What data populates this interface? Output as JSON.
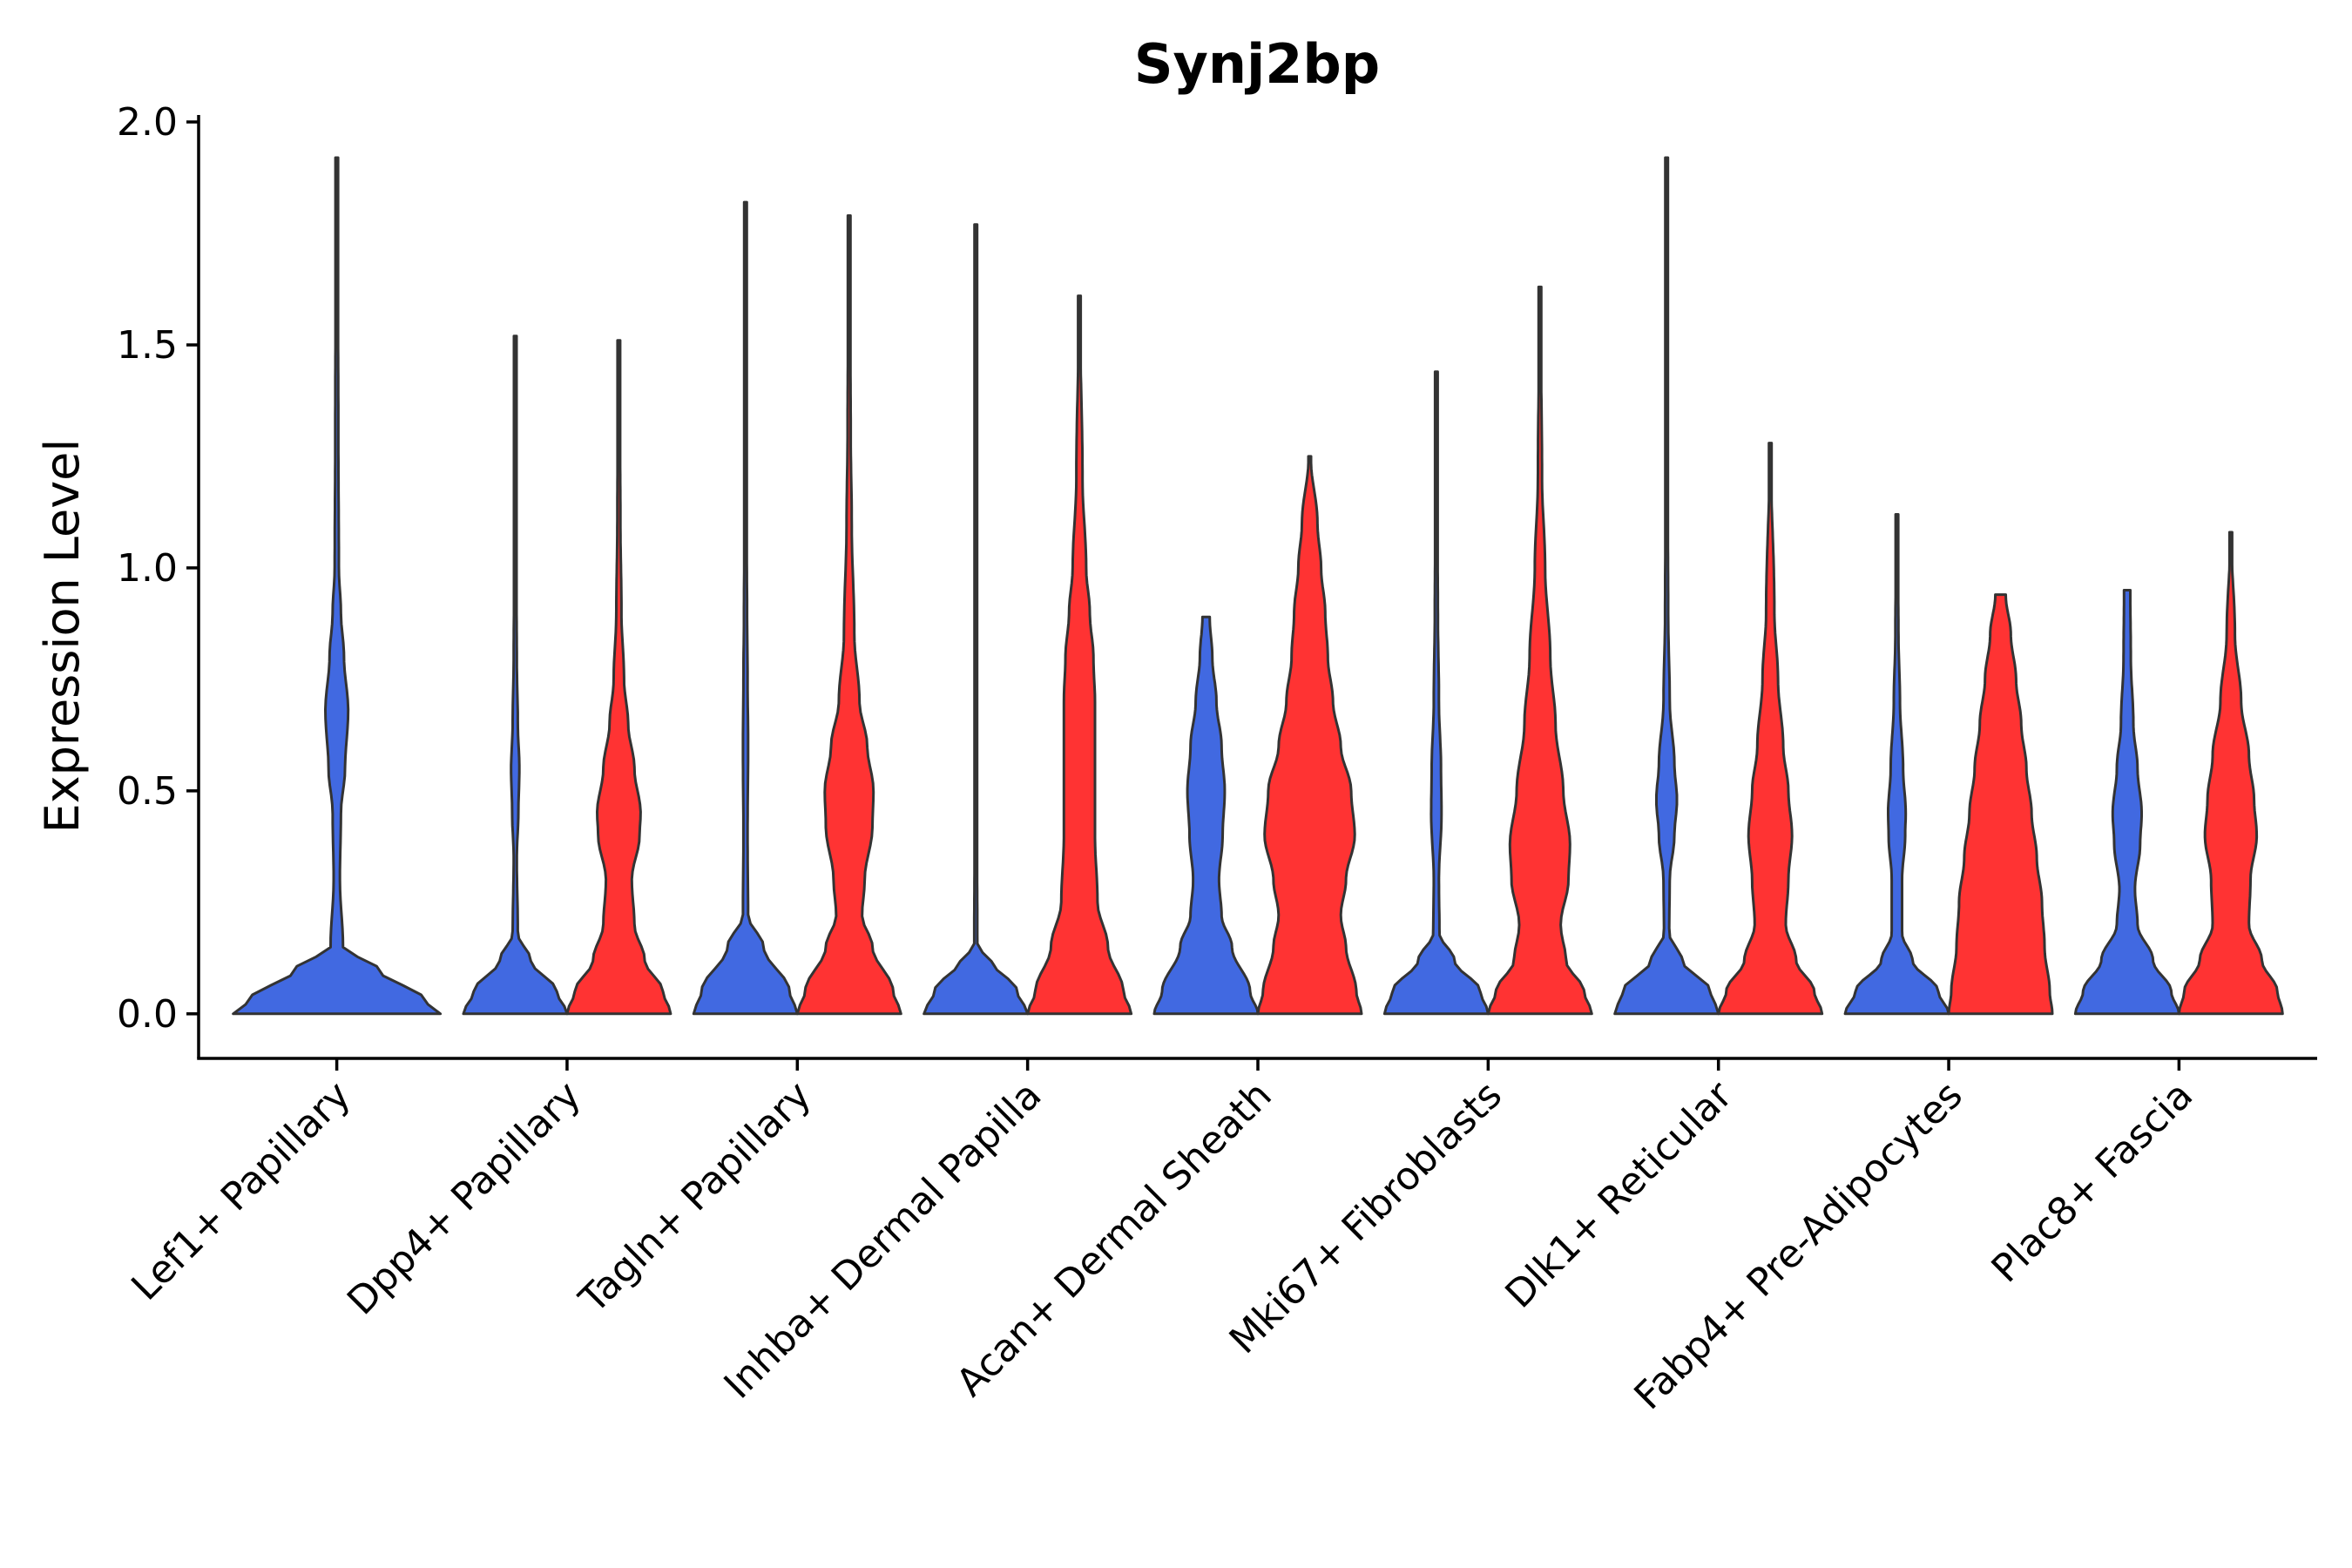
{
  "chart_data": {
    "type": "violin",
    "title": "Synj2bp",
    "xlabel": "",
    "ylabel": "Expression Level",
    "ylim": [
      -0.1,
      2.0
    ],
    "yticks": [
      "0.0",
      "0.5",
      "1.0",
      "1.5",
      "2.0"
    ],
    "grid": false,
    "legend": "none",
    "split_colors": [
      "#4169E1",
      "#FF3333"
    ],
    "categories": [
      "Lef1+ Papillary",
      "Dpp4+ Papillary",
      "Tagln+ Papillary",
      "Inhba+ Dermal Papilla",
      "Acan+ Dermal Sheath",
      "Mki67+ Fibroblasts",
      "Dlk1+ Reticular",
      "Fabp4+ Pre-Adipocytes",
      "Plac8+ Fascia"
    ],
    "series": [
      {
        "name": "blue",
        "color": "#4169E1",
        "violins": [
          {
            "max": 1.92,
            "profile": [
              [
                0,
                1.0
              ],
              [
                0.03,
                0.85
              ],
              [
                0.1,
                0.4
              ],
              [
                0.15,
                0.06
              ],
              [
                0.3,
                0.03
              ],
              [
                0.45,
                0.04
              ],
              [
                0.55,
                0.08
              ],
              [
                0.68,
                0.11
              ],
              [
                0.8,
                0.07
              ],
              [
                0.9,
                0.04
              ],
              [
                1.0,
                0.02
              ],
              [
                1.3,
                0.015
              ],
              [
                1.92,
                0.005
              ]
            ]
          },
          {
            "max": 1.52,
            "profile": [
              [
                0,
                1.0
              ],
              [
                0.05,
                0.8
              ],
              [
                0.12,
                0.3
              ],
              [
                0.18,
                0.05
              ],
              [
                0.35,
                0.03
              ],
              [
                0.45,
                0.06
              ],
              [
                0.55,
                0.08
              ],
              [
                0.65,
                0.05
              ],
              [
                0.8,
                0.03
              ],
              [
                1.0,
                0.02
              ],
              [
                1.52,
                0.005
              ]
            ]
          },
          {
            "max": 1.82,
            "profile": [
              [
                0,
                1.0
              ],
              [
                0.05,
                0.85
              ],
              [
                0.15,
                0.35
              ],
              [
                0.22,
                0.05
              ],
              [
                0.4,
                0.04
              ],
              [
                0.6,
                0.05
              ],
              [
                0.75,
                0.04
              ],
              [
                0.9,
                0.03
              ],
              [
                1.1,
                0.02
              ],
              [
                1.82,
                0.005
              ]
            ]
          },
          {
            "max": 1.77,
            "profile": [
              [
                0,
                1.0
              ],
              [
                0.05,
                0.8
              ],
              [
                0.12,
                0.3
              ],
              [
                0.15,
                0.03
              ],
              [
                0.5,
                0.02
              ],
              [
                0.8,
                0.02
              ],
              [
                1.0,
                0.015
              ],
              [
                1.77,
                0.005
              ]
            ]
          },
          {
            "max": 0.89,
            "profile": [
              [
                0,
                1.0
              ],
              [
                0.05,
                0.85
              ],
              [
                0.15,
                0.5
              ],
              [
                0.22,
                0.3
              ],
              [
                0.3,
                0.25
              ],
              [
                0.4,
                0.32
              ],
              [
                0.5,
                0.36
              ],
              [
                0.6,
                0.3
              ],
              [
                0.7,
                0.2
              ],
              [
                0.8,
                0.12
              ],
              [
                0.89,
                0.07
              ]
            ]
          },
          {
            "max": 1.44,
            "profile": [
              [
                0,
                1.0
              ],
              [
                0.05,
                0.85
              ],
              [
                0.12,
                0.35
              ],
              [
                0.18,
                0.06
              ],
              [
                0.3,
                0.05
              ],
              [
                0.45,
                0.1
              ],
              [
                0.55,
                0.09
              ],
              [
                0.7,
                0.05
              ],
              [
                0.9,
                0.03
              ],
              [
                1.1,
                0.02
              ],
              [
                1.44,
                0.005
              ]
            ]
          },
          {
            "max": 1.92,
            "profile": [
              [
                0,
                1.0
              ],
              [
                0.05,
                0.85
              ],
              [
                0.12,
                0.3
              ],
              [
                0.18,
                0.05
              ],
              [
                0.3,
                0.06
              ],
              [
                0.4,
                0.15
              ],
              [
                0.48,
                0.2
              ],
              [
                0.56,
                0.15
              ],
              [
                0.7,
                0.06
              ],
              [
                0.9,
                0.03
              ],
              [
                1.2,
                0.02
              ],
              [
                1.92,
                0.005
              ]
            ]
          },
          {
            "max": 1.12,
            "profile": [
              [
                0,
                1.0
              ],
              [
                0.05,
                0.8
              ],
              [
                0.12,
                0.3
              ],
              [
                0.18,
                0.1
              ],
              [
                0.3,
                0.1
              ],
              [
                0.4,
                0.16
              ],
              [
                0.45,
                0.17
              ],
              [
                0.55,
                0.12
              ],
              [
                0.7,
                0.06
              ],
              [
                0.85,
                0.03
              ],
              [
                1.12,
                0.005
              ]
            ]
          },
          {
            "max": 0.95,
            "profile": [
              [
                0,
                1.0
              ],
              [
                0.05,
                0.85
              ],
              [
                0.12,
                0.5
              ],
              [
                0.2,
                0.2
              ],
              [
                0.28,
                0.15
              ],
              [
                0.38,
                0.25
              ],
              [
                0.45,
                0.28
              ],
              [
                0.55,
                0.2
              ],
              [
                0.65,
                0.12
              ],
              [
                0.8,
                0.07
              ],
              [
                0.95,
                0.06
              ]
            ]
          }
        ]
      },
      {
        "name": "red",
        "color": "#FF3333",
        "violins": [
          null,
          {
            "max": 1.51,
            "profile": [
              [
                0,
                1.0
              ],
              [
                0.05,
                0.85
              ],
              [
                0.12,
                0.5
              ],
              [
                0.2,
                0.3
              ],
              [
                0.3,
                0.25
              ],
              [
                0.4,
                0.4
              ],
              [
                0.45,
                0.42
              ],
              [
                0.55,
                0.3
              ],
              [
                0.65,
                0.18
              ],
              [
                0.75,
                0.1
              ],
              [
                0.9,
                0.05
              ],
              [
                1.1,
                0.03
              ],
              [
                1.51,
                0.005
              ]
            ]
          },
          {
            "max": 1.79,
            "profile": [
              [
                0,
                1.0
              ],
              [
                0.05,
                0.85
              ],
              [
                0.15,
                0.45
              ],
              [
                0.22,
                0.25
              ],
              [
                0.3,
                0.3
              ],
              [
                0.42,
                0.45
              ],
              [
                0.5,
                0.47
              ],
              [
                0.6,
                0.35
              ],
              [
                0.7,
                0.2
              ],
              [
                0.85,
                0.1
              ],
              [
                1.1,
                0.05
              ],
              [
                1.3,
                0.03
              ],
              [
                1.79,
                0.005
              ]
            ]
          },
          {
            "max": 1.61,
            "profile": [
              [
                0,
                1.0
              ],
              [
                0.05,
                0.85
              ],
              [
                0.15,
                0.55
              ],
              [
                0.25,
                0.35
              ],
              [
                0.4,
                0.3
              ],
              [
                0.55,
                0.3
              ],
              [
                0.7,
                0.3
              ],
              [
                0.8,
                0.27
              ],
              [
                0.9,
                0.2
              ],
              [
                1.0,
                0.13
              ],
              [
                1.2,
                0.06
              ],
              [
                1.61,
                0.005
              ]
            ]
          },
          {
            "max": 1.25,
            "profile": [
              [
                0,
                1.0
              ],
              [
                0.05,
                0.9
              ],
              [
                0.15,
                0.7
              ],
              [
                0.22,
                0.6
              ],
              [
                0.3,
                0.7
              ],
              [
                0.4,
                0.87
              ],
              [
                0.5,
                0.8
              ],
              [
                0.6,
                0.6
              ],
              [
                0.7,
                0.45
              ],
              [
                0.8,
                0.35
              ],
              [
                0.9,
                0.3
              ],
              [
                1.0,
                0.22
              ],
              [
                1.1,
                0.15
              ],
              [
                1.25,
                0.02
              ]
            ]
          },
          {
            "max": 1.63,
            "profile": [
              [
                0,
                1.0
              ],
              [
                0.05,
                0.85
              ],
              [
                0.12,
                0.5
              ],
              [
                0.2,
                0.4
              ],
              [
                0.3,
                0.55
              ],
              [
                0.38,
                0.58
              ],
              [
                0.5,
                0.45
              ],
              [
                0.65,
                0.3
              ],
              [
                0.8,
                0.2
              ],
              [
                1.0,
                0.1
              ],
              [
                1.2,
                0.04
              ],
              [
                1.63,
                0.005
              ]
            ]
          },
          {
            "max": 1.28,
            "profile": [
              [
                0,
                1.0
              ],
              [
                0.05,
                0.85
              ],
              [
                0.12,
                0.5
              ],
              [
                0.2,
                0.3
              ],
              [
                0.3,
                0.35
              ],
              [
                0.4,
                0.42
              ],
              [
                0.5,
                0.35
              ],
              [
                0.6,
                0.25
              ],
              [
                0.75,
                0.15
              ],
              [
                0.9,
                0.08
              ],
              [
                1.28,
                0.005
              ]
            ]
          },
          {
            "max": 0.94,
            "profile": [
              [
                0,
                1.0
              ],
              [
                0.05,
                0.95
              ],
              [
                0.15,
                0.85
              ],
              [
                0.25,
                0.8
              ],
              [
                0.35,
                0.7
              ],
              [
                0.45,
                0.6
              ],
              [
                0.55,
                0.5
              ],
              [
                0.65,
                0.4
              ],
              [
                0.75,
                0.3
              ],
              [
                0.85,
                0.2
              ],
              [
                0.94,
                0.1
              ]
            ]
          },
          {
            "max": 1.08,
            "profile": [
              [
                0,
                1.0
              ],
              [
                0.05,
                0.9
              ],
              [
                0.12,
                0.6
              ],
              [
                0.2,
                0.35
              ],
              [
                0.3,
                0.38
              ],
              [
                0.4,
                0.5
              ],
              [
                0.48,
                0.45
              ],
              [
                0.58,
                0.35
              ],
              [
                0.7,
                0.2
              ],
              [
                0.85,
                0.08
              ],
              [
                1.08,
                0.005
              ]
            ]
          }
        ]
      }
    ]
  }
}
